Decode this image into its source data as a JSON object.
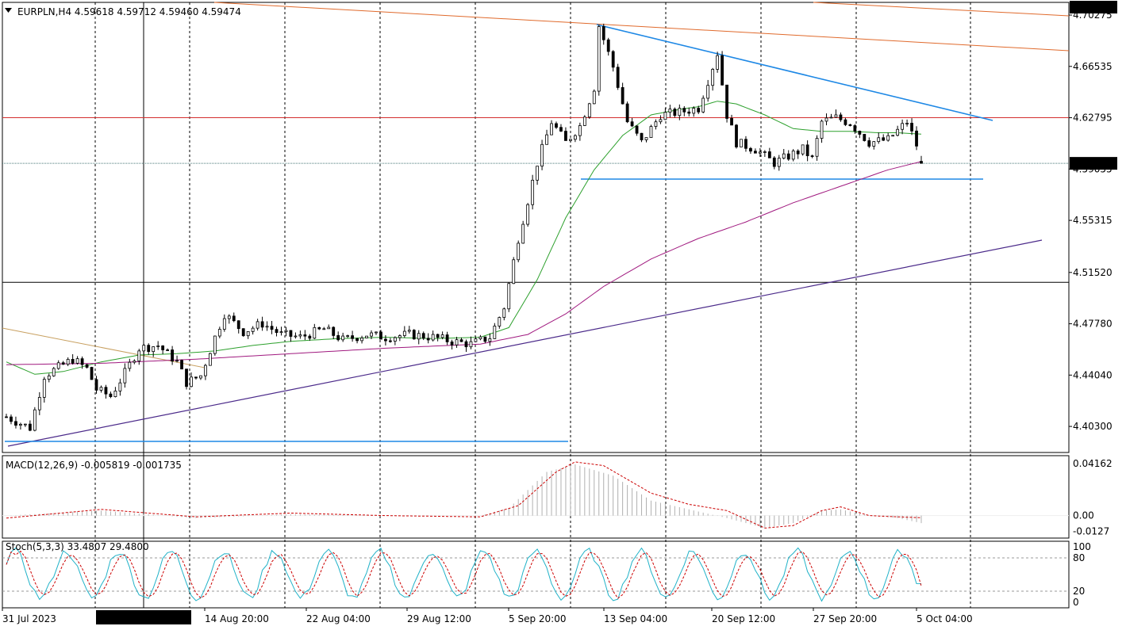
{
  "chart_title": "EURPLN,H4  4.59618 4.59712 4.59460 4.59474",
  "macd_title": "MACD(12,26,9) -0.005819 -0.001735",
  "stoch_title": "Stoch(5,3,3) 33.4807 29.4800",
  "price_labels": [
    "4.70275",
    "4.66535",
    "4.62795",
    "4.59055",
    "4.55315",
    "4.51520",
    "4.47780",
    "4.44040",
    "4.40300"
  ],
  "price_ticks": [
    4.70275,
    4.66535,
    4.62795,
    4.59055,
    4.55315,
    4.5152,
    4.4778,
    4.4404,
    4.403
  ],
  "price_current": "4.59474",
  "price_top": "4.70772",
  "macd_labels": [
    "0.04162",
    "0.00",
    "-0.0127"
  ],
  "stoch_labels": [
    "100",
    "80",
    "20",
    "0"
  ],
  "time_labels": [
    "31 Jul 2023",
    "14 Aug 20:00",
    "22 Aug 04:00",
    "29 Aug 12:00",
    "5 Sep 20:00",
    "13 Sep 04:00",
    "20 Sep 12:00",
    "27 Sep 20:00",
    "5 Oct 04:00"
  ],
  "time_highlight": "2023.08.09 16:00",
  "colors": {
    "bull": "#ffffff",
    "bear": "#000000",
    "ma_green": "#2ca02c",
    "ma_purple": "#a0197f",
    "trend_blue": "#1e88e5",
    "trend_navy": "#4b2a8a",
    "red_line": "#d32f2f",
    "orange": "#e06a2c",
    "macd_hist": "#b0b0b0",
    "macd_signal": "#cc0000",
    "stoch_main": "#20b2c8",
    "stoch_signal": "#cc0000"
  },
  "chart_data": {
    "type": "candlestick",
    "symbol": "EURPLN",
    "timeframe": "H4",
    "ylim": [
      4.384,
      4.712
    ],
    "x_count": 194,
    "last_bar": {
      "open": 4.59618,
      "high": 4.59712,
      "low": 4.5946,
      "close": 4.59474
    },
    "close_anchors": [
      [
        0,
        4.41
      ],
      [
        5,
        4.402
      ],
      [
        8,
        4.44
      ],
      [
        14,
        4.452
      ],
      [
        17,
        4.445
      ],
      [
        19,
        4.43
      ],
      [
        22,
        4.425
      ],
      [
        25,
        4.442
      ],
      [
        28,
        4.46
      ],
      [
        32,
        4.462
      ],
      [
        36,
        4.45
      ],
      [
        38,
        4.435
      ],
      [
        41,
        4.44
      ],
      [
        44,
        4.468
      ],
      [
        46,
        4.485
      ],
      [
        50,
        4.472
      ],
      [
        54,
        4.478
      ],
      [
        58,
        4.47
      ],
      [
        62,
        4.468
      ],
      [
        67,
        4.474
      ],
      [
        71,
        4.466
      ],
      [
        76,
        4.47
      ],
      [
        80,
        4.468
      ],
      [
        85,
        4.47
      ],
      [
        90,
        4.468
      ],
      [
        94,
        4.465
      ],
      [
        98,
        4.463
      ],
      [
        102,
        4.468
      ],
      [
        105,
        4.49
      ],
      [
        108,
        4.54
      ],
      [
        112,
        4.595
      ],
      [
        115,
        4.625
      ],
      [
        118,
        4.61
      ],
      [
        121,
        4.622
      ],
      [
        124,
        4.65
      ],
      [
        125,
        4.695
      ],
      [
        128,
        4.665
      ],
      [
        131,
        4.625
      ],
      [
        134,
        4.61
      ],
      [
        138,
        4.63
      ],
      [
        142,
        4.632
      ],
      [
        146,
        4.635
      ],
      [
        150,
        4.675
      ],
      [
        152,
        4.63
      ],
      [
        154,
        4.61
      ],
      [
        158,
        4.605
      ],
      [
        162,
        4.595
      ],
      [
        165,
        4.6
      ],
      [
        168,
        4.605
      ],
      [
        170,
        4.598
      ],
      [
        172,
        4.625
      ],
      [
        175,
        4.628
      ],
      [
        178,
        4.624
      ],
      [
        182,
        4.61
      ],
      [
        186,
        4.612
      ],
      [
        190,
        4.625
      ],
      [
        192,
        4.608
      ],
      [
        193,
        4.595
      ]
    ],
    "ma_green_anchors": [
      [
        0,
        4.45
      ],
      [
        6,
        4.441
      ],
      [
        12,
        4.443
      ],
      [
        20,
        4.45
      ],
      [
        28,
        4.455
      ],
      [
        36,
        4.456
      ],
      [
        44,
        4.458
      ],
      [
        52,
        4.462
      ],
      [
        60,
        4.465
      ],
      [
        70,
        4.467
      ],
      [
        80,
        4.468
      ],
      [
        90,
        4.467
      ],
      [
        100,
        4.468
      ],
      [
        106,
        4.475
      ],
      [
        112,
        4.51
      ],
      [
        118,
        4.555
      ],
      [
        124,
        4.59
      ],
      [
        130,
        4.615
      ],
      [
        136,
        4.63
      ],
      [
        142,
        4.634
      ],
      [
        146,
        4.636
      ],
      [
        150,
        4.64
      ],
      [
        154,
        4.638
      ],
      [
        160,
        4.63
      ],
      [
        166,
        4.62
      ],
      [
        172,
        4.618
      ],
      [
        178,
        4.618
      ],
      [
        184,
        4.617
      ],
      [
        188,
        4.617
      ],
      [
        193,
        4.616
      ]
    ],
    "ma_purple_anchors": [
      [
        0,
        4.448
      ],
      [
        20,
        4.449
      ],
      [
        40,
        4.452
      ],
      [
        60,
        4.456
      ],
      [
        80,
        4.46
      ],
      [
        100,
        4.463
      ],
      [
        110,
        4.47
      ],
      [
        118,
        4.485
      ],
      [
        126,
        4.505
      ],
      [
        136,
        4.525
      ],
      [
        146,
        4.54
      ],
      [
        156,
        4.552
      ],
      [
        166,
        4.566
      ],
      [
        176,
        4.578
      ],
      [
        186,
        4.59
      ],
      [
        193,
        4.596
      ]
    ],
    "macd_hist_anchors": [
      [
        0,
        0.0
      ],
      [
        20,
        0.004
      ],
      [
        40,
        -0.002
      ],
      [
        60,
        0.001
      ],
      [
        80,
        0.0
      ],
      [
        100,
        0.0
      ],
      [
        106,
        0.006
      ],
      [
        114,
        0.035
      ],
      [
        120,
        0.041
      ],
      [
        128,
        0.032
      ],
      [
        136,
        0.012
      ],
      [
        144,
        0.005
      ],
      [
        152,
        -0.002
      ],
      [
        160,
        -0.01
      ],
      [
        166,
        -0.006
      ],
      [
        172,
        0.004
      ],
      [
        176,
        0.005
      ],
      [
        182,
        0.0
      ],
      [
        188,
        -0.002
      ],
      [
        193,
        -0.006
      ]
    ],
    "macd_signal_anchors": [
      [
        0,
        -0.002
      ],
      [
        20,
        0.005
      ],
      [
        40,
        -0.001
      ],
      [
        60,
        0.002
      ],
      [
        80,
        0.0
      ],
      [
        100,
        -0.001
      ],
      [
        108,
        0.008
      ],
      [
        116,
        0.035
      ],
      [
        120,
        0.043
      ],
      [
        126,
        0.04
      ],
      [
        136,
        0.018
      ],
      [
        144,
        0.009
      ],
      [
        152,
        0.004
      ],
      [
        160,
        -0.01
      ],
      [
        166,
        -0.008
      ],
      [
        172,
        0.004
      ],
      [
        176,
        0.007
      ],
      [
        182,
        0.0
      ],
      [
        188,
        -0.001
      ],
      [
        193,
        -0.0017
      ]
    ],
    "stoch_period": 11,
    "stoch_current": [
      33.48,
      29.48
    ]
  }
}
